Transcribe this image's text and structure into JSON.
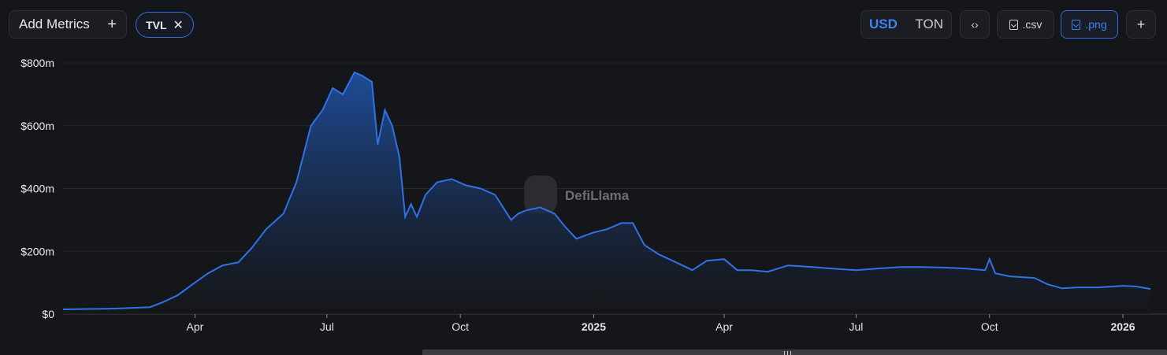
{
  "toolbar": {
    "add_metrics_label": "Add Metrics",
    "add_metrics_icon": "plus-icon",
    "metric_chip_label": "TVL",
    "metric_chip_icon": "close-icon",
    "currency_options": [
      "USD",
      "TON"
    ],
    "currency_selected": "USD",
    "embed_icon": "code-brackets-icon",
    "csv_label": ".csv",
    "png_label": ".png",
    "more_icon": "plus-icon"
  },
  "colors": {
    "background": "#151619",
    "line": "#2f72e6",
    "fill_top": "#1f4f9e",
    "accent": "#3d85ef"
  },
  "watermark": "DefiLlama",
  "chart_data": {
    "type": "area",
    "title": "",
    "xlabel": "",
    "ylabel": "",
    "ylim": [
      0,
      800000000
    ],
    "y_ticks": [
      "$0",
      "$200m",
      "$400m",
      "$600m",
      "$800m"
    ],
    "x_ticks": [
      "Apr",
      "Jul",
      "Oct",
      "2025",
      "Apr",
      "Jul",
      "Oct",
      "2026"
    ],
    "x_bold_ticks": [
      "2025",
      "2026"
    ],
    "grid": "horizontal",
    "series": [
      {
        "values_unit": "USD",
        "x": [
          "2024-01-01",
          "2024-01-15",
          "2024-02-01",
          "2024-02-15",
          "2024-03-01",
          "2024-03-10",
          "2024-03-20",
          "2024-04-01",
          "2024-04-10",
          "2024-04-20",
          "2024-05-01",
          "2024-05-10",
          "2024-05-20",
          "2024-06-01",
          "2024-06-10",
          "2024-06-20",
          "2024-06-28",
          "2024-07-05",
          "2024-07-12",
          "2024-07-20",
          "2024-07-25",
          "2024-08-01",
          "2024-08-05",
          "2024-08-10",
          "2024-08-15",
          "2024-08-20",
          "2024-08-24",
          "2024-08-28",
          "2024-09-01",
          "2024-09-07",
          "2024-09-15",
          "2024-09-25",
          "2024-10-05",
          "2024-10-15",
          "2024-10-25",
          "2024-11-05",
          "2024-11-10",
          "2024-11-15",
          "2024-11-25",
          "2024-12-05",
          "2024-12-12",
          "2024-12-20",
          "2025-01-01",
          "2025-01-10",
          "2025-01-20",
          "2025-01-28",
          "2025-02-05",
          "2025-02-15",
          "2025-03-01",
          "2025-03-10",
          "2025-03-20",
          "2025-04-01",
          "2025-04-10",
          "2025-04-20",
          "2025-05-01",
          "2025-05-15",
          "2025-06-01",
          "2025-06-15",
          "2025-07-01",
          "2025-07-15",
          "2025-08-01",
          "2025-08-15",
          "2025-09-01",
          "2025-09-15",
          "2025-09-28",
          "2025-10-01",
          "2025-10-05",
          "2025-10-15",
          "2025-11-01",
          "2025-11-10",
          "2025-11-20",
          "2025-12-01",
          "2025-12-15",
          "2026-01-01",
          "2026-01-10",
          "2026-01-20"
        ],
        "values": [
          15000000,
          16000000,
          17000000,
          19000000,
          22000000,
          38000000,
          60000000,
          100000000,
          130000000,
          155000000,
          165000000,
          210000000,
          270000000,
          320000000,
          420000000,
          600000000,
          650000000,
          720000000,
          700000000,
          770000000,
          760000000,
          740000000,
          540000000,
          650000000,
          600000000,
          500000000,
          310000000,
          350000000,
          310000000,
          380000000,
          420000000,
          430000000,
          410000000,
          400000000,
          380000000,
          300000000,
          320000000,
          330000000,
          340000000,
          320000000,
          280000000,
          240000000,
          260000000,
          270000000,
          290000000,
          290000000,
          220000000,
          190000000,
          160000000,
          140000000,
          170000000,
          175000000,
          140000000,
          140000000,
          135000000,
          155000000,
          150000000,
          145000000,
          140000000,
          145000000,
          150000000,
          150000000,
          148000000,
          145000000,
          140000000,
          175000000,
          130000000,
          120000000,
          115000000,
          95000000,
          82000000,
          85000000,
          85000000,
          90000000,
          88000000,
          80000000
        ]
      }
    ]
  }
}
